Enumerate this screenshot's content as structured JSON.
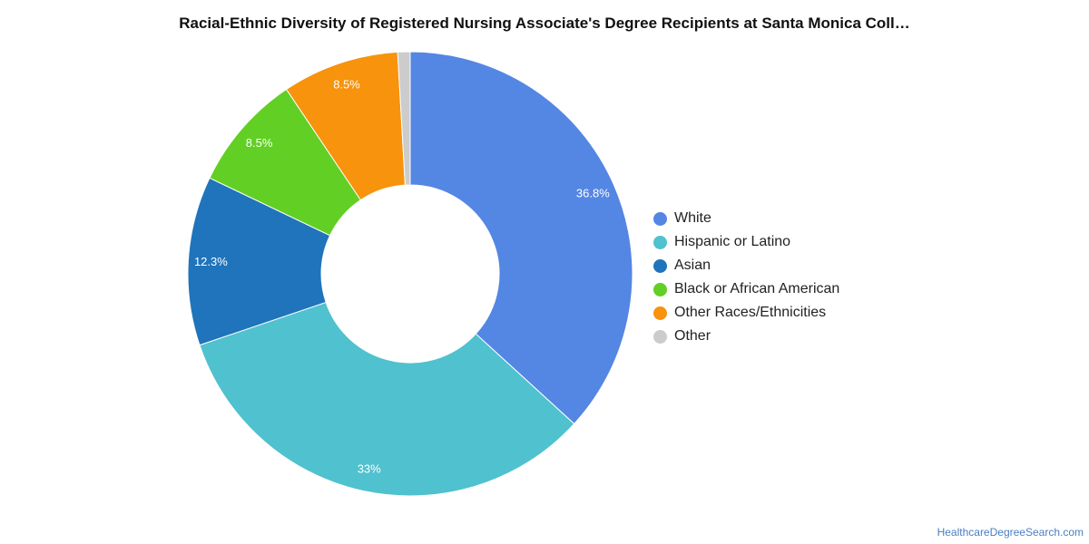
{
  "title": "Racial-Ethnic Diversity of Registered Nursing Associate's Degree Recipients at Santa Monica Coll…",
  "source_link": "HealthcareDegreeSearch.com",
  "chart_data": {
    "type": "pie",
    "variant": "donut",
    "legend_position": "right",
    "series": [
      {
        "name": "White",
        "value": 36.8,
        "label": "36.8%",
        "color": "#5486e3"
      },
      {
        "name": "Hispanic or Latino",
        "value": 33.0,
        "label": "33%",
        "color": "#50c1ce"
      },
      {
        "name": "Asian",
        "value": 12.3,
        "label": "12.3%",
        "color": "#1f74bb"
      },
      {
        "name": "Black or African American",
        "value": 8.5,
        "label": "8.5%",
        "color": "#62cf24"
      },
      {
        "name": "Other Races/Ethnicities",
        "value": 8.5,
        "label": "8.5%",
        "color": "#f7930c"
      },
      {
        "name": "Other",
        "value": 0.9,
        "label": "",
        "color": "#cccccc"
      }
    ]
  }
}
